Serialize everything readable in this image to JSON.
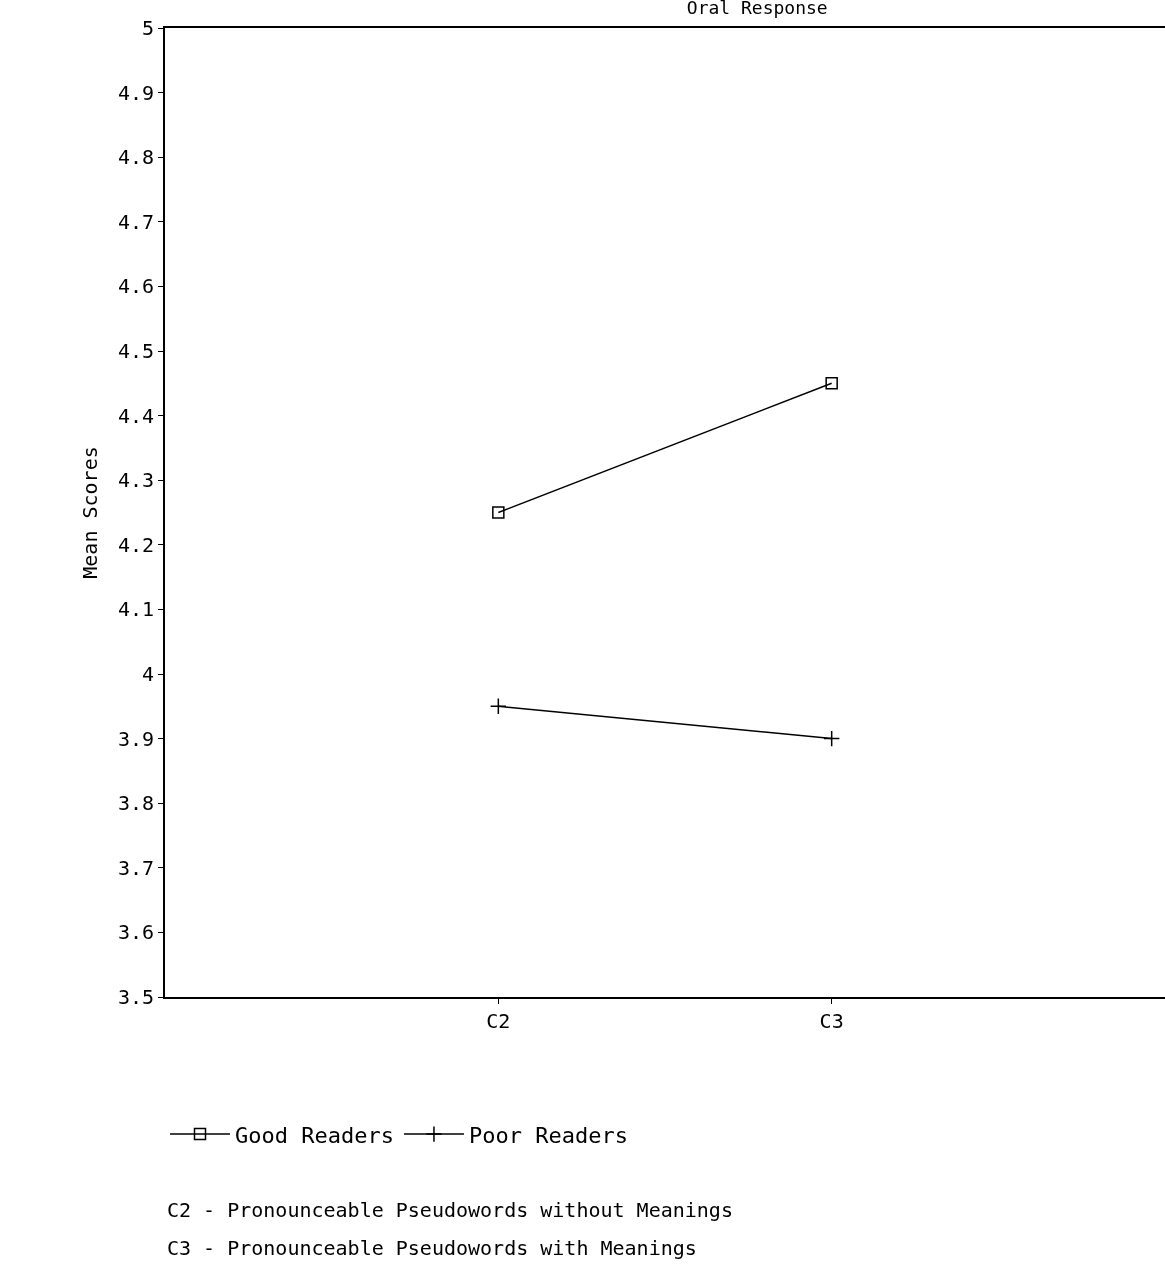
{
  "chart_data": {
    "type": "line",
    "title": "Oral Response",
    "ylabel": "Mean Scores",
    "categories": [
      "C2",
      "C3"
    ],
    "series": [
      {
        "name": "Good Readers",
        "color": "#000000",
        "marker": "square",
        "values": [
          4.25,
          4.45
        ]
      },
      {
        "name": "Poor Readers",
        "color": "#000000",
        "marker": "cross",
        "values": [
          3.95,
          3.9
        ]
      }
    ],
    "ylim": [
      3.5,
      5
    ],
    "yticks": [
      3.5,
      3.6,
      3.7,
      3.8,
      3.9,
      4,
      4.1,
      4.2,
      4.3,
      4.4,
      4.5,
      4.6,
      4.7,
      4.8,
      4.9,
      5
    ],
    "legend": "bottom",
    "line_style": "solid",
    "annotations": [
      "C2 - Pronounceable Pseudowords without Meanings",
      "C3 - Pronounceable Pseudowords with Meanings"
    ]
  }
}
